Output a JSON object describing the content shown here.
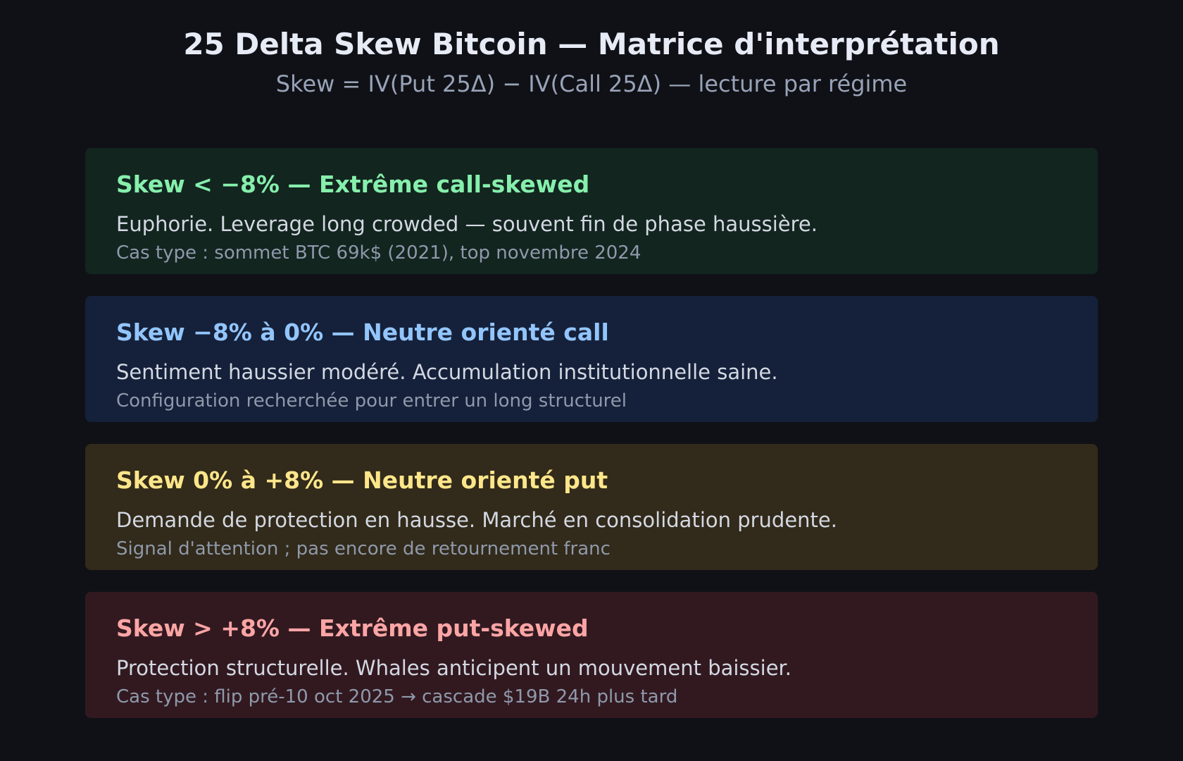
{
  "header": {
    "title": "25 Delta Skew Bitcoin — Matrice d'interprétation",
    "subtitle": "Skew = IV(Put 25Δ) − IV(Call 25Δ) — lecture par régime"
  },
  "colors": {
    "page_background": "#101116",
    "extreme_call_bg": "#12251f",
    "extreme_call_accent": "#86efac",
    "neutral_call_bg": "#15213a",
    "neutral_call_accent": "#93c5fd",
    "neutral_put_bg": "#322a1a",
    "neutral_put_accent": "#fde68a",
    "extreme_put_bg": "#321920",
    "extreme_put_accent": "#fca5a5"
  },
  "regimes": [
    {
      "title": "Skew < −8% — Extrême call-skewed",
      "description": "Euphorie. Leverage long crowded — souvent fin de phase haussière.",
      "note": "Cas type : sommet BTC 69k$ (2021), top novembre 2024"
    },
    {
      "title": "Skew −8% à 0% — Neutre orienté call",
      "description": "Sentiment haussier modéré. Accumulation institutionnelle saine.",
      "note": "Configuration recherchée pour entrer un long structurel"
    },
    {
      "title": "Skew 0% à +8% — Neutre orienté put",
      "description": "Demande de protection en hausse. Marché en consolidation prudente.",
      "note": "Signal d'attention ; pas encore de retournement franc"
    },
    {
      "title": "Skew > +8% — Extrême put-skewed",
      "description": "Protection structurelle. Whales anticipent un mouvement baissier.",
      "note": "Cas type : flip pré-10 oct 2025 → cascade $19B 24h plus tard"
    }
  ]
}
